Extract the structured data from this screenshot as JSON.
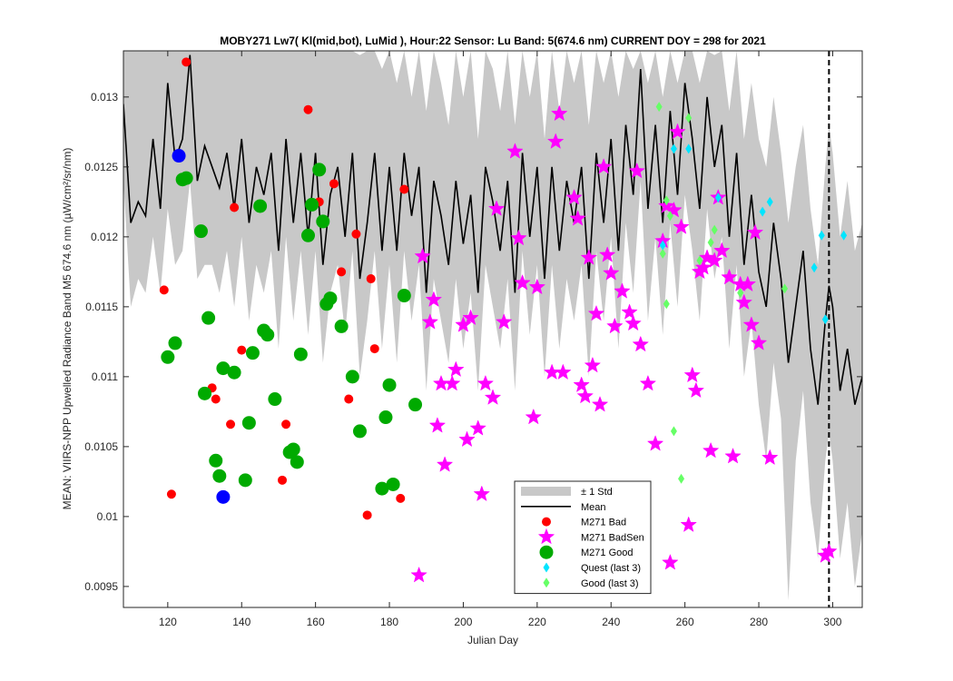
{
  "chart_data": {
    "type": "scatter",
    "title": "MOBY271   Lw7( Kl(mid,bot), LuMid ),   Hour:22 Sensor: Lu Band: 5(674.6 nm)   CURRENT DOY = 298 for 2021",
    "xlabel": "Julian Day",
    "ylabel": "MEAN: VIIRS-NPP Upwelled Radiance Band M5 674.6 nm (µW/cm²/sr/nm)",
    "xlim": [
      108,
      308
    ],
    "ylim": [
      0.00935,
      0.01333
    ],
    "x_ticks": [
      120,
      140,
      160,
      180,
      200,
      220,
      240,
      260,
      280,
      300
    ],
    "y_ticks": [
      0.0095,
      0.01,
      0.0105,
      0.011,
      0.0115,
      0.012,
      0.0125,
      0.013
    ],
    "grid": false,
    "legend_position": "bottom-right",
    "current_doy": 298,
    "current_doy_line_x": 299,
    "legend": [
      {
        "label": "± 1 Std",
        "key": "std",
        "color": "#c8c8c8"
      },
      {
        "label": "Mean",
        "key": "mean",
        "color": "#000000"
      },
      {
        "label": "M271 Bad",
        "key": "bad",
        "color": "#ff0000"
      },
      {
        "label": "M271 BadSen",
        "key": "badsen",
        "color": "#ff00ff"
      },
      {
        "label": "M271 Good",
        "key": "good",
        "color": "#00aa00"
      },
      {
        "label": "Quest (last 3)",
        "key": "quest",
        "color": "#00e5ff"
      },
      {
        "label": "Good (last 3)",
        "key": "good3",
        "color": "#66ff66"
      }
    ],
    "colors": {
      "std": "#c8c8c8",
      "mean": "#000000",
      "bad": "#ff0000",
      "badsen": "#ff00ff",
      "good": "#00aa00",
      "good_edge": "#00aa00",
      "blue": "#0000ff",
      "quest": "#00e5ff",
      "good3": "#66ff66"
    },
    "mean": {
      "x": [
        108,
        110,
        112,
        114,
        116,
        118,
        120,
        122,
        124,
        126,
        128,
        130,
        132,
        134,
        136,
        138,
        140,
        142,
        144,
        146,
        148,
        150,
        152,
        154,
        156,
        158,
        160,
        162,
        164,
        166,
        168,
        170,
        172,
        174,
        176,
        178,
        180,
        182,
        184,
        186,
        188,
        190,
        192,
        194,
        196,
        198,
        200,
        202,
        204,
        206,
        208,
        210,
        212,
        214,
        216,
        218,
        220,
        222,
        224,
        226,
        228,
        230,
        232,
        234,
        236,
        238,
        240,
        242,
        244,
        246,
        248,
        250,
        252,
        254,
        256,
        258,
        260,
        262,
        264,
        266,
        268,
        270,
        272,
        274,
        276,
        278,
        280,
        282,
        284,
        286,
        288,
        290,
        292,
        294,
        296,
        298,
        299,
        300,
        302,
        304,
        306,
        308
      ],
      "y": [
        0.01295,
        0.0121,
        0.01225,
        0.01215,
        0.0127,
        0.0122,
        0.0131,
        0.01255,
        0.0127,
        0.0133,
        0.0124,
        0.01265,
        0.0125,
        0.01235,
        0.0126,
        0.0122,
        0.0127,
        0.0121,
        0.0125,
        0.0123,
        0.0126,
        0.0119,
        0.0127,
        0.0121,
        0.0126,
        0.012,
        0.0126,
        0.0118,
        0.0123,
        0.0125,
        0.012,
        0.0126,
        0.0117,
        0.0121,
        0.0126,
        0.0119,
        0.0125,
        0.0119,
        0.0126,
        0.01215,
        0.0125,
        0.0116,
        0.0124,
        0.01215,
        0.0118,
        0.0124,
        0.01195,
        0.0123,
        0.0116,
        0.0125,
        0.01225,
        0.0119,
        0.0124,
        0.0116,
        0.0126,
        0.012,
        0.0125,
        0.0117,
        0.0125,
        0.0119,
        0.0124,
        0.0121,
        0.0125,
        0.0117,
        0.0126,
        0.0121,
        0.0127,
        0.0119,
        0.0128,
        0.0123,
        0.0132,
        0.0122,
        0.0128,
        0.0121,
        0.0129,
        0.0123,
        0.0131,
        0.0127,
        0.0122,
        0.013,
        0.0125,
        0.0128,
        0.012,
        0.0126,
        0.0118,
        0.0123,
        0.01175,
        0.0115,
        0.0121,
        0.0117,
        0.0111,
        0.0115,
        0.0119,
        0.0112,
        0.0108,
        0.0114,
        0.01165,
        0.0115,
        0.0109,
        0.0112,
        0.0108,
        0.011
      ],
      "upper": [
        0.01333,
        0.01333,
        0.01333,
        0.01333,
        0.01333,
        0.01333,
        0.01333,
        0.01333,
        0.01333,
        0.01333,
        0.01333,
        0.01333,
        0.01333,
        0.01333,
        0.01333,
        0.01333,
        0.01333,
        0.01333,
        0.01333,
        0.01333,
        0.01333,
        0.01333,
        0.01333,
        0.01333,
        0.01333,
        0.01333,
        0.01333,
        0.01333,
        0.01333,
        0.01333,
        0.01333,
        0.01333,
        0.0133,
        0.01333,
        0.01333,
        0.0132,
        0.01333,
        0.0131,
        0.01333,
        0.013,
        0.01333,
        0.0129,
        0.01333,
        0.0131,
        0.0128,
        0.01333,
        0.013,
        0.01333,
        0.0127,
        0.01333,
        0.0132,
        0.0129,
        0.01333,
        0.0128,
        0.01333,
        0.013,
        0.01333,
        0.0127,
        0.01333,
        0.0129,
        0.01333,
        0.0131,
        0.01333,
        0.0128,
        0.01333,
        0.0131,
        0.01333,
        0.013,
        0.01333,
        0.0132,
        0.01333,
        0.0131,
        0.01333,
        0.013,
        0.01333,
        0.0131,
        0.01333,
        0.01333,
        0.0131,
        0.01333,
        0.0133,
        0.01333,
        0.0129,
        0.01333,
        0.0127,
        0.0131,
        0.0127,
        0.0125,
        0.013,
        0.0126,
        0.0121,
        0.0125,
        0.0128,
        0.0122,
        0.0118,
        0.0125,
        0.0128,
        0.0126,
        0.012,
        0.0124,
        0.0119,
        0.0121
      ],
      "lower": [
        0.0124,
        0.0115,
        0.0117,
        0.0116,
        0.012,
        0.0116,
        0.0122,
        0.0118,
        0.0119,
        0.0124,
        0.0117,
        0.0118,
        0.0118,
        0.0116,
        0.0119,
        0.0115,
        0.012,
        0.0114,
        0.0118,
        0.0116,
        0.0119,
        0.0112,
        0.012,
        0.0114,
        0.0119,
        0.0113,
        0.0119,
        0.0111,
        0.0116,
        0.0118,
        0.0113,
        0.0119,
        0.011,
        0.0114,
        0.0119,
        0.0112,
        0.0118,
        0.0111,
        0.0119,
        0.0114,
        0.0118,
        0.0109,
        0.0117,
        0.0114,
        0.0111,
        0.0117,
        0.0112,
        0.0116,
        0.0109,
        0.0118,
        0.0115,
        0.0112,
        0.0117,
        0.0109,
        0.0119,
        0.0113,
        0.0118,
        0.011,
        0.0118,
        0.0112,
        0.0117,
        0.0114,
        0.0118,
        0.011,
        0.0119,
        0.0114,
        0.012,
        0.0112,
        0.0121,
        0.0116,
        0.0124,
        0.0114,
        0.012,
        0.0113,
        0.0121,
        0.0115,
        0.0123,
        0.0119,
        0.0114,
        0.0122,
        0.0117,
        0.012,
        0.0112,
        0.0118,
        0.011,
        0.0114,
        0.0108,
        0.0104,
        0.0111,
        0.0107,
        0.0094,
        0.0104,
        0.0109,
        0.0101,
        0.0097,
        0.0104,
        0.0106,
        0.0104,
        0.0097,
        0.0101,
        0.0095,
        0.0099
      ]
    },
    "series": [
      {
        "key": "bad",
        "points": [
          [
            119,
            0.01162
          ],
          [
            121,
            0.01016
          ],
          [
            125,
            0.01325
          ],
          [
            132,
            0.01092
          ],
          [
            133,
            0.01084
          ],
          [
            137,
            0.01066
          ],
          [
            138,
            0.01221
          ],
          [
            140,
            0.01119
          ],
          [
            151,
            0.01026
          ],
          [
            152,
            0.01066
          ],
          [
            158,
            0.01291
          ],
          [
            161,
            0.01225
          ],
          [
            165,
            0.01238
          ],
          [
            167,
            0.01175
          ],
          [
            169,
            0.01084
          ],
          [
            171,
            0.01202
          ],
          [
            174,
            0.01001
          ],
          [
            175,
            0.0117
          ],
          [
            176,
            0.0112
          ],
          [
            183,
            0.01013
          ],
          [
            184,
            0.01234
          ]
        ]
      },
      {
        "key": "badsen",
        "points": [
          [
            188,
            0.00958
          ],
          [
            189,
            0.01186
          ],
          [
            191,
            0.01139
          ],
          [
            192,
            0.01155
          ],
          [
            193,
            0.01065
          ],
          [
            194,
            0.01095
          ],
          [
            195,
            0.01037
          ],
          [
            197,
            0.01095
          ],
          [
            198,
            0.01105
          ],
          [
            200,
            0.01137
          ],
          [
            201,
            0.01055
          ],
          [
            202,
            0.01142
          ],
          [
            204,
            0.01063
          ],
          [
            205,
            0.01016
          ],
          [
            206,
            0.01095
          ],
          [
            208,
            0.01085
          ],
          [
            209,
            0.0122
          ],
          [
            211,
            0.01139
          ],
          [
            214,
            0.01261
          ],
          [
            215,
            0.01199
          ],
          [
            216,
            0.01167
          ],
          [
            219,
            0.01071
          ],
          [
            220,
            0.01164
          ],
          [
            224,
            0.01103
          ],
          [
            225,
            0.01268
          ],
          [
            226,
            0.01288
          ],
          [
            227,
            0.01103
          ],
          [
            230,
            0.01228
          ],
          [
            231,
            0.01213
          ],
          [
            232,
            0.01094
          ],
          [
            233,
            0.01086
          ],
          [
            234,
            0.01185
          ],
          [
            235,
            0.01108
          ],
          [
            236,
            0.01145
          ],
          [
            237,
            0.0108
          ],
          [
            238,
            0.0125
          ],
          [
            239,
            0.01187
          ],
          [
            240,
            0.01174
          ],
          [
            241,
            0.01136
          ],
          [
            243,
            0.01161
          ],
          [
            245,
            0.01146
          ],
          [
            246,
            0.01138
          ],
          [
            247,
            0.01247
          ],
          [
            248,
            0.01123
          ],
          [
            250,
            0.01095
          ],
          [
            252,
            0.01052
          ],
          [
            254,
            0.01197
          ],
          [
            255,
            0.01222
          ],
          [
            256,
            0.00967
          ],
          [
            257,
            0.01219
          ],
          [
            258,
            0.01275
          ],
          [
            259,
            0.01207
          ],
          [
            261,
            0.00994
          ],
          [
            262,
            0.01101
          ],
          [
            263,
            0.0109
          ],
          [
            264,
            0.01175
          ],
          [
            265,
            0.01178
          ],
          [
            266,
            0.01185
          ],
          [
            267,
            0.01047
          ],
          [
            268,
            0.01183
          ],
          [
            269,
            0.01228
          ],
          [
            270,
            0.0119
          ],
          [
            272,
            0.01171
          ],
          [
            273,
            0.01043
          ],
          [
            275,
            0.01166
          ],
          [
            276,
            0.01153
          ],
          [
            277,
            0.01166
          ],
          [
            278,
            0.01137
          ],
          [
            279,
            0.01203
          ],
          [
            280,
            0.01124
          ],
          [
            283,
            0.01042
          ],
          [
            298,
            0.00972
          ],
          [
            299,
            0.00975
          ]
        ]
      },
      {
        "key": "good",
        "points": [
          [
            120,
            0.01114
          ],
          [
            122,
            0.01124
          ],
          [
            124,
            0.01241
          ],
          [
            125,
            0.01242
          ],
          [
            129,
            0.01204
          ],
          [
            130,
            0.01088
          ],
          [
            131,
            0.01142
          ],
          [
            133,
            0.0104
          ],
          [
            134,
            0.01029
          ],
          [
            135,
            0.01106
          ],
          [
            138,
            0.01103
          ],
          [
            141,
            0.01026
          ],
          [
            142,
            0.01067
          ],
          [
            143,
            0.01117
          ],
          [
            145,
            0.01222
          ],
          [
            146,
            0.01133
          ],
          [
            147,
            0.0113
          ],
          [
            149,
            0.01084
          ],
          [
            153,
            0.01046
          ],
          [
            154,
            0.01048
          ],
          [
            155,
            0.01039
          ],
          [
            156,
            0.01116
          ],
          [
            158,
            0.01201
          ],
          [
            159,
            0.01223
          ],
          [
            161,
            0.01248
          ],
          [
            162,
            0.01211
          ],
          [
            163,
            0.01152
          ],
          [
            164,
            0.01156
          ],
          [
            167,
            0.01136
          ],
          [
            170,
            0.011
          ],
          [
            172,
            0.01061
          ],
          [
            178,
            0.0102
          ],
          [
            179,
            0.01071
          ],
          [
            180,
            0.01094
          ],
          [
            181,
            0.01023
          ],
          [
            184,
            0.01158
          ],
          [
            187,
            0.0108
          ]
        ]
      },
      {
        "key": "blue",
        "points": [
          [
            123,
            0.01258
          ],
          [
            135,
            0.01014
          ]
        ]
      },
      {
        "key": "quest",
        "points": [
          [
            254,
            0.01194
          ],
          [
            257,
            0.01263
          ],
          [
            261,
            0.01263
          ],
          [
            269,
            0.01228
          ],
          [
            281,
            0.01218
          ],
          [
            283,
            0.01225
          ],
          [
            295,
            0.01178
          ],
          [
            297,
            0.01201
          ],
          [
            298,
            0.01141
          ],
          [
            303,
            0.01201
          ]
        ]
      },
      {
        "key": "good3",
        "points": [
          [
            253,
            0.01293
          ],
          [
            254,
            0.01188
          ],
          [
            255,
            0.01152
          ],
          [
            255,
            0.01226
          ],
          [
            256,
            0.01215
          ],
          [
            257,
            0.01061
          ],
          [
            259,
            0.01027
          ],
          [
            261,
            0.01285
          ],
          [
            264,
            0.01183
          ],
          [
            267,
            0.01196
          ],
          [
            268,
            0.01205
          ],
          [
            275,
            0.0116
          ],
          [
            287,
            0.01163
          ]
        ]
      }
    ]
  }
}
